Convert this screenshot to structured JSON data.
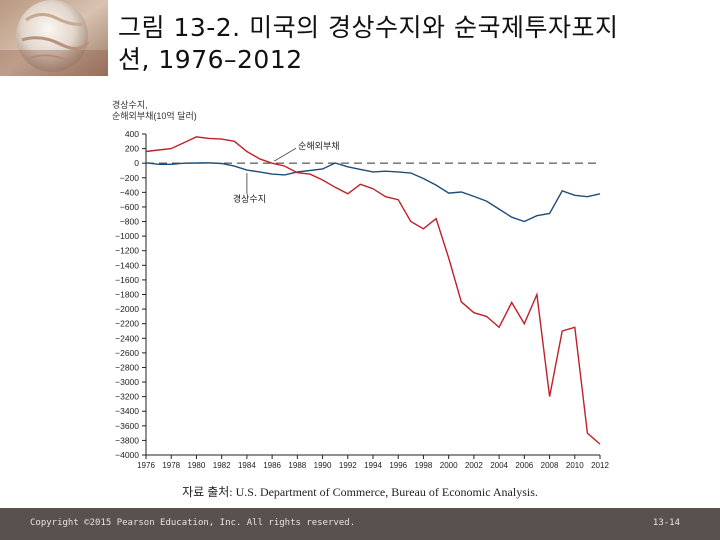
{
  "slide": {
    "title": "그림 13-2. 미국의 경상수지와 순국제투자포지\n션, 1976–2012",
    "source": "자료 출처: U.S. Department of Commerce, Bureau of Economic Analysis.",
    "copyright": "Copyright ©2015 Pearson Education, Inc. All rights reserved.",
    "page_number": "13-14"
  },
  "chart_data": {
    "type": "line",
    "title": "",
    "ylabel_lines": [
      "경상수지,",
      "순해외부채(10억 달러)"
    ],
    "xlabel": "",
    "ylim": [
      -4000,
      400
    ],
    "yticks": [
      400,
      200,
      0,
      -200,
      -400,
      -600,
      -800,
      -1000,
      -1200,
      -1400,
      -1600,
      -1800,
      -2000,
      -2200,
      -2400,
      -2600,
      -2800,
      -3000,
      -3200,
      -3400,
      -3600,
      -3800,
      -4000
    ],
    "xlim": [
      1976,
      2012
    ],
    "xticks": [
      1976,
      1978,
      1980,
      1982,
      1984,
      1986,
      1988,
      1990,
      1992,
      1994,
      1996,
      1998,
      2000,
      2002,
      2004,
      2006,
      2008,
      2010,
      2012
    ],
    "zero_line": "dashed",
    "x": [
      1976,
      1977,
      1978,
      1979,
      1980,
      1981,
      1982,
      1983,
      1984,
      1985,
      1986,
      1987,
      1988,
      1989,
      1990,
      1991,
      1992,
      1993,
      1994,
      1995,
      1996,
      1997,
      1998,
      1999,
      2000,
      2001,
      2002,
      2003,
      2004,
      2005,
      2006,
      2007,
      2008,
      2009,
      2010,
      2011,
      2012
    ],
    "series": [
      {
        "name": "경상수지",
        "color": "#1f4e79",
        "values": [
          5,
          -15,
          -15,
          0,
          2,
          5,
          -5,
          -40,
          -95,
          -120,
          -150,
          -160,
          -120,
          -100,
          -80,
          3,
          -50,
          -85,
          -120,
          -110,
          -120,
          -135,
          -210,
          -300,
          -410,
          -395,
          -455,
          -520,
          -630,
          -740,
          -800,
          -720,
          -690,
          -380,
          -440,
          -460,
          -420
        ]
      },
      {
        "name": "순해외부채",
        "color": "#c0202a",
        "values": [
          160,
          180,
          200,
          280,
          360,
          340,
          330,
          300,
          160,
          60,
          0,
          -40,
          -130,
          -150,
          -230,
          -330,
          -420,
          -290,
          -350,
          -460,
          -500,
          -800,
          -900,
          -760,
          -1300,
          -1900,
          -2050,
          -2100,
          -2250,
          -1910,
          -2200,
          -1800,
          -3200,
          -2300,
          -2250,
          -3700,
          -3850
        ]
      }
    ],
    "annotations": [
      {
        "text": "순해외부채",
        "series": 1
      },
      {
        "text": "경상수지",
        "series": 0
      }
    ],
    "legend": "none",
    "grid": false
  }
}
